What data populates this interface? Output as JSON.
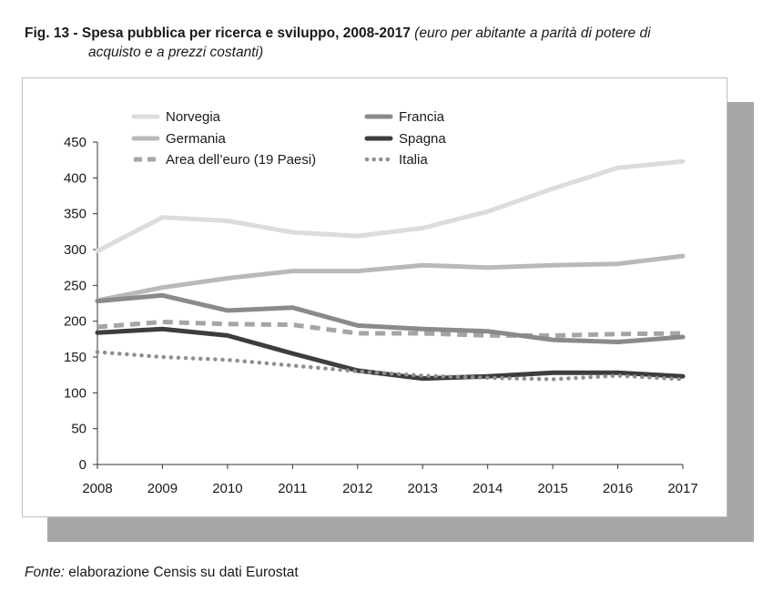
{
  "figure": {
    "label": "Fig. 13 - Spesa pubblica per ricerca e sviluppo, 2008-2017",
    "subtitle_line1": "(euro per abitante a parità di potere di",
    "subtitle_line2": "acquisto e a prezzi costanti)"
  },
  "source": {
    "label": "Fonte:",
    "text": "elaborazione Censis su dati Eurostat"
  },
  "chart_data": {
    "type": "line",
    "title": "Spesa pubblica per ricerca e sviluppo, 2008-2017",
    "subtitle": "(euro per abitante a parità di potere di acquisto e a prezzi costanti)",
    "xlabel": "",
    "ylabel": "",
    "x": [
      "2008",
      "2009",
      "2010",
      "2011",
      "2012",
      "2013",
      "2014",
      "2015",
      "2016",
      "2017"
    ],
    "ylim": [
      0,
      450
    ],
    "yticks": [
      "0",
      "50",
      "100",
      "150",
      "200",
      "250",
      "300",
      "350",
      "400",
      "450"
    ],
    "grid": false,
    "legend_position": "top",
    "series": [
      {
        "name": "Norvegia",
        "color": "#dcdcdc",
        "style": "solid",
        "values": [
          298,
          345,
          340,
          324,
          319,
          330,
          353,
          385,
          414,
          423
        ]
      },
      {
        "name": "Germania",
        "color": "#b9b9b9",
        "style": "solid",
        "values": [
          229,
          247,
          260,
          270,
          270,
          278,
          275,
          278,
          280,
          291
        ]
      },
      {
        "name": "Area dell’euro (19 Paesi)",
        "color": "#a5a5a5",
        "style": "dashed",
        "values": [
          192,
          199,
          196,
          195,
          183,
          183,
          180,
          180,
          182,
          183
        ]
      },
      {
        "name": "Francia",
        "color": "#8a8a8a",
        "style": "solid",
        "values": [
          228,
          236,
          215,
          219,
          194,
          189,
          186,
          174,
          171,
          178
        ]
      },
      {
        "name": "Spagna",
        "color": "#3d3d3d",
        "style": "solid",
        "values": [
          184,
          189,
          180,
          155,
          131,
          120,
          123,
          128,
          128,
          123
        ]
      },
      {
        "name": "Italia",
        "color": "#8f8f8f",
        "style": "dotted",
        "values": [
          157,
          150,
          146,
          138,
          130,
          124,
          121,
          119,
          124,
          119
        ]
      }
    ]
  }
}
